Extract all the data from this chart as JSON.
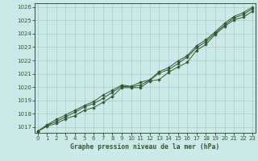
{
  "title": "Graphe pression niveau de la mer (hPa)",
  "xlabel_ticks": [
    0,
    1,
    2,
    3,
    4,
    5,
    6,
    7,
    8,
    9,
    10,
    11,
    12,
    13,
    14,
    15,
    16,
    17,
    18,
    19,
    20,
    21,
    22,
    23
  ],
  "ylim": [
    1016.55,
    1026.3
  ],
  "xlim": [
    -0.3,
    23.3
  ],
  "yticks": [
    1017,
    1018,
    1019,
    1020,
    1021,
    1022,
    1023,
    1024,
    1025,
    1026
  ],
  "bg_color": "#cce8e8",
  "grid_color": "#aacccc",
  "line_color": "#2d5a2d",
  "marker_color": "#2d5a2d",
  "title_color": "#2d5a2d",
  "series": [
    [
      1016.65,
      1017.05,
      1017.25,
      1017.6,
      1017.85,
      1018.25,
      1018.45,
      1018.85,
      1019.3,
      1019.95,
      1019.95,
      1019.95,
      1020.45,
      1020.55,
      1021.1,
      1021.5,
      1021.85,
      1022.75,
      1023.2,
      1023.95,
      1024.55,
      1025.05,
      1025.25,
      1025.7
    ],
    [
      1016.65,
      1017.1,
      1017.4,
      1017.75,
      1018.1,
      1018.5,
      1018.75,
      1019.15,
      1019.6,
      1020.05,
      1020.0,
      1020.15,
      1020.5,
      1021.05,
      1021.3,
      1021.75,
      1022.25,
      1022.95,
      1023.4,
      1024.05,
      1024.65,
      1025.2,
      1025.45,
      1025.9
    ],
    [
      1016.65,
      1017.15,
      1017.55,
      1017.9,
      1018.25,
      1018.6,
      1018.9,
      1019.4,
      1019.75,
      1020.15,
      1020.05,
      1020.35,
      1020.55,
      1021.15,
      1021.45,
      1021.95,
      1022.35,
      1023.1,
      1023.55,
      1024.15,
      1024.8,
      1025.3,
      1025.6,
      1026.0
    ]
  ]
}
